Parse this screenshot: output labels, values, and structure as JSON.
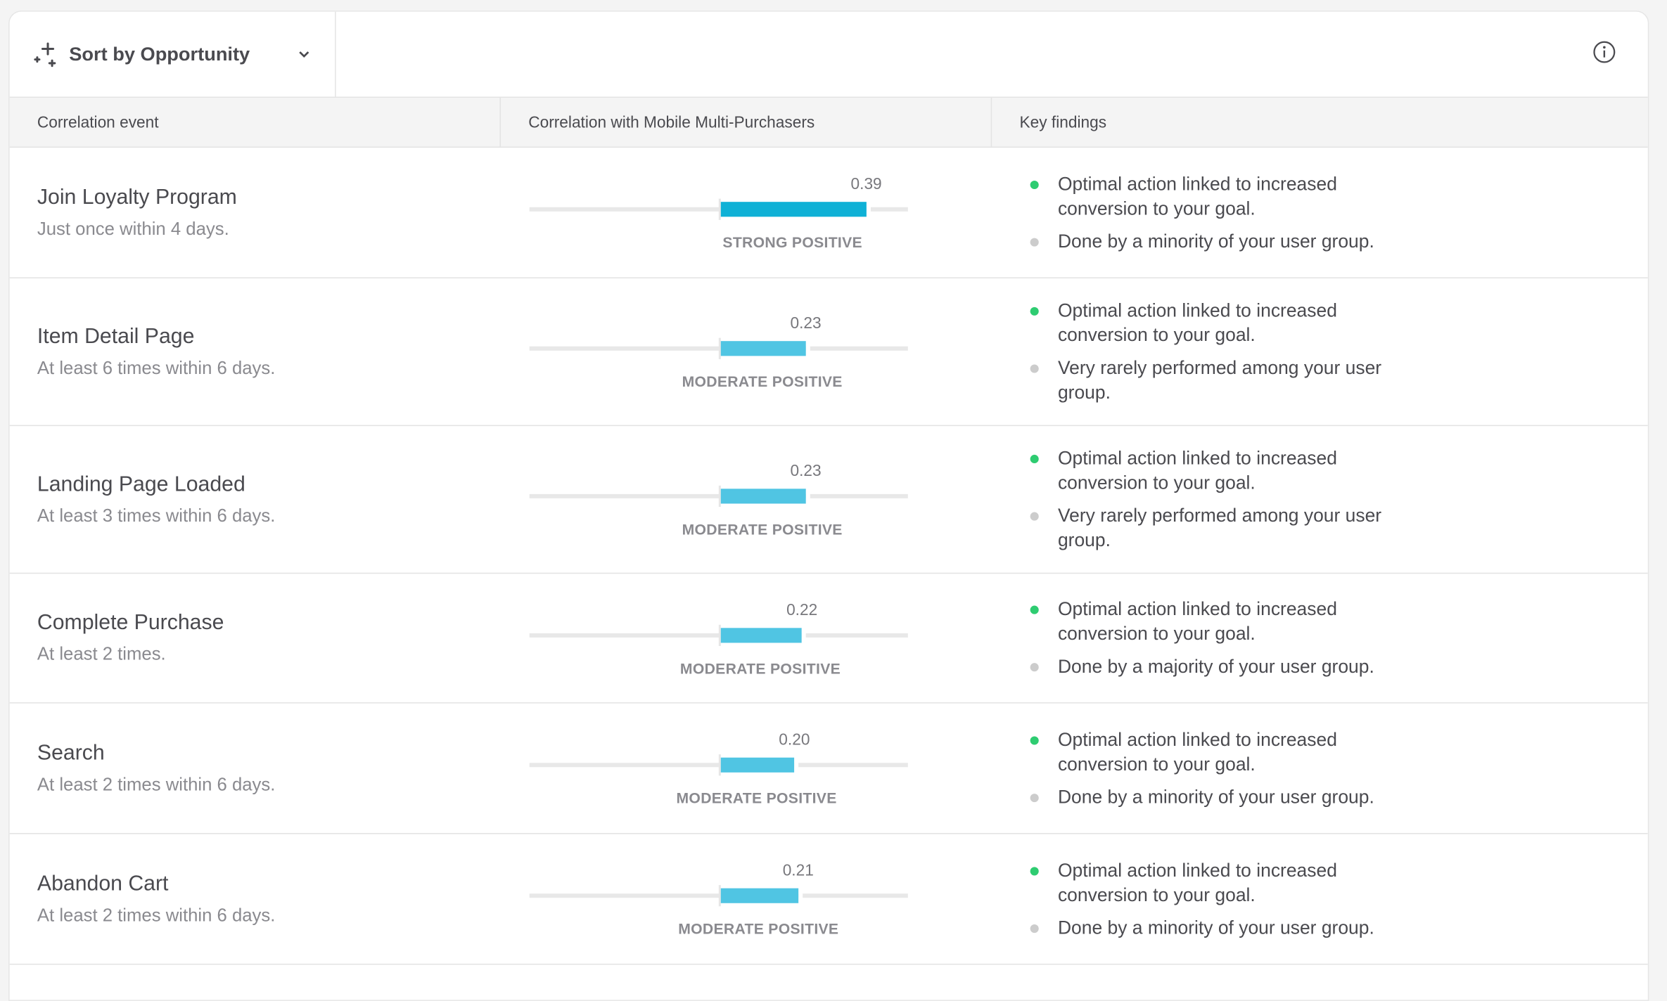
{
  "toolbar": {
    "sort_label": "Sort by Opportunity",
    "sort_icon": "sparkle-icon",
    "info_icon": "info-icon"
  },
  "columns": {
    "event": "Correlation event",
    "correlation": "Correlation with Mobile Multi-Purchasers",
    "findings": "Key findings"
  },
  "colors": {
    "strong": "#0fb1d6",
    "moderate": "#50c5e3",
    "positive_dot": "#2ecc71",
    "neutral_dot": "#cccccc"
  },
  "scale_range": [
    -0.5,
    0.5
  ],
  "rows": [
    {
      "name": "Join Loyalty Program",
      "sub": "Just once within 4 days.",
      "value": 0.39,
      "value_label": "0.39",
      "strength": "STRONG POSITIVE",
      "level": "strong",
      "findings": [
        {
          "text": "Optimal action linked to increased conversion to your goal.",
          "type": "positive"
        },
        {
          "text": "Done by a minority of your user group.",
          "type": "neutral"
        }
      ]
    },
    {
      "name": "Item Detail Page",
      "sub": "At least 6 times within 6 days.",
      "value": 0.23,
      "value_label": "0.23",
      "strength": "MODERATE POSITIVE",
      "level": "moderate",
      "findings": [
        {
          "text": "Optimal action linked to increased conversion to your goal.",
          "type": "positive"
        },
        {
          "text": "Very rarely performed among your user group.",
          "type": "neutral"
        }
      ]
    },
    {
      "name": "Landing Page Loaded",
      "sub": "At least 3 times within 6 days.",
      "value": 0.23,
      "value_label": "0.23",
      "strength": "MODERATE POSITIVE",
      "level": "moderate",
      "findings": [
        {
          "text": "Optimal action linked to increased conversion to your goal.",
          "type": "positive"
        },
        {
          "text": "Very rarely performed among your user group.",
          "type": "neutral"
        }
      ]
    },
    {
      "name": "Complete Purchase",
      "sub": "At least 2 times.",
      "value": 0.22,
      "value_label": "0.22",
      "strength": "MODERATE POSITIVE",
      "level": "moderate",
      "findings": [
        {
          "text": "Optimal action linked to increased conversion to your goal.",
          "type": "positive"
        },
        {
          "text": "Done by a majority of your user group.",
          "type": "neutral"
        }
      ]
    },
    {
      "name": "Search",
      "sub": "At least 2 times within 6 days.",
      "value": 0.2,
      "value_label": "0.20",
      "strength": "MODERATE POSITIVE",
      "level": "moderate",
      "findings": [
        {
          "text": "Optimal action linked to increased conversion to your goal.",
          "type": "positive"
        },
        {
          "text": "Done by a minority of your user group.",
          "type": "neutral"
        }
      ]
    },
    {
      "name": "Abandon Cart",
      "sub": "At least 2 times within 6 days.",
      "value": 0.21,
      "value_label": "0.21",
      "strength": "MODERATE POSITIVE",
      "level": "moderate",
      "findings": [
        {
          "text": "Optimal action linked to increased conversion to your goal.",
          "type": "positive"
        },
        {
          "text": "Done by a minority of your user group.",
          "type": "neutral"
        }
      ]
    }
  ]
}
